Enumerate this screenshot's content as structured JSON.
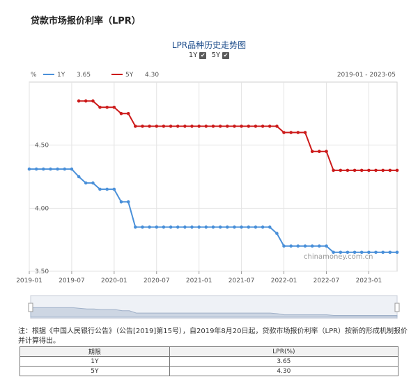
{
  "page": {
    "title": "贷款市场报价利率（LPR）",
    "note": "注：根据《中国人民银行公告》（公告[2019]第15号），自2019年8月20日起，贷款市场报价利率（LPR）按新的形成机制报价并计算得出。"
  },
  "chart": {
    "title": "LPR品种历史走势图",
    "toggles": [
      {
        "label": "1Y",
        "checked": true
      },
      {
        "label": "5Y",
        "checked": true
      }
    ],
    "unit": "%",
    "legend": [
      {
        "name": "1Y",
        "value": "3.65",
        "color": "#4a90d9"
      },
      {
        "name": "5Y",
        "value": "4.30",
        "color": "#cc1a1a"
      }
    ],
    "range_label": "2019-01 - 2023-05",
    "watermark": "chinamoney.com.cn"
  },
  "table": {
    "headers": [
      "期限",
      "LPR(%)"
    ],
    "rows": [
      [
        "1Y",
        "3.65"
      ],
      [
        "5Y",
        "4.30"
      ]
    ]
  },
  "chart_data": {
    "type": "line",
    "x_ticks": [
      "2019-01",
      "2019-07",
      "2020-01",
      "2020-07",
      "2021-01",
      "2021-07",
      "2022-01",
      "2022-07",
      "2023-01"
    ],
    "y_ticks": [
      "4.50",
      "4.00",
      "3.50"
    ],
    "ylim": [
      3.5,
      5.0
    ],
    "xlim": [
      "2019-01",
      "2023-05"
    ],
    "series": [
      {
        "name": "1Y",
        "color": "#4a90d9",
        "points": [
          [
            "2019-01",
            4.31
          ],
          [
            "2019-02",
            4.31
          ],
          [
            "2019-03",
            4.31
          ],
          [
            "2019-04",
            4.31
          ],
          [
            "2019-05",
            4.31
          ],
          [
            "2019-06",
            4.31
          ],
          [
            "2019-07",
            4.31
          ],
          [
            "2019-08",
            4.25
          ],
          [
            "2019-09",
            4.2
          ],
          [
            "2019-10",
            4.2
          ],
          [
            "2019-11",
            4.15
          ],
          [
            "2019-12",
            4.15
          ],
          [
            "2020-01",
            4.15
          ],
          [
            "2020-02",
            4.05
          ],
          [
            "2020-03",
            4.05
          ],
          [
            "2020-04",
            3.85
          ],
          [
            "2020-05",
            3.85
          ],
          [
            "2020-06",
            3.85
          ],
          [
            "2020-07",
            3.85
          ],
          [
            "2020-08",
            3.85
          ],
          [
            "2020-09",
            3.85
          ],
          [
            "2020-10",
            3.85
          ],
          [
            "2020-11",
            3.85
          ],
          [
            "2020-12",
            3.85
          ],
          [
            "2021-01",
            3.85
          ],
          [
            "2021-02",
            3.85
          ],
          [
            "2021-03",
            3.85
          ],
          [
            "2021-04",
            3.85
          ],
          [
            "2021-05",
            3.85
          ],
          [
            "2021-06",
            3.85
          ],
          [
            "2021-07",
            3.85
          ],
          [
            "2021-08",
            3.85
          ],
          [
            "2021-09",
            3.85
          ],
          [
            "2021-10",
            3.85
          ],
          [
            "2021-11",
            3.85
          ],
          [
            "2021-12",
            3.8
          ],
          [
            "2022-01",
            3.7
          ],
          [
            "2022-02",
            3.7
          ],
          [
            "2022-03",
            3.7
          ],
          [
            "2022-04",
            3.7
          ],
          [
            "2022-05",
            3.7
          ],
          [
            "2022-06",
            3.7
          ],
          [
            "2022-07",
            3.7
          ],
          [
            "2022-08",
            3.65
          ],
          [
            "2022-09",
            3.65
          ],
          [
            "2022-10",
            3.65
          ],
          [
            "2022-11",
            3.65
          ],
          [
            "2022-12",
            3.65
          ],
          [
            "2023-01",
            3.65
          ],
          [
            "2023-02",
            3.65
          ],
          [
            "2023-03",
            3.65
          ],
          [
            "2023-04",
            3.65
          ],
          [
            "2023-05",
            3.65
          ]
        ]
      },
      {
        "name": "5Y",
        "color": "#cc1a1a",
        "points": [
          [
            "2019-08",
            4.85
          ],
          [
            "2019-09",
            4.85
          ],
          [
            "2019-10",
            4.85
          ],
          [
            "2019-11",
            4.8
          ],
          [
            "2019-12",
            4.8
          ],
          [
            "2020-01",
            4.8
          ],
          [
            "2020-02",
            4.75
          ],
          [
            "2020-03",
            4.75
          ],
          [
            "2020-04",
            4.65
          ],
          [
            "2020-05",
            4.65
          ],
          [
            "2020-06",
            4.65
          ],
          [
            "2020-07",
            4.65
          ],
          [
            "2020-08",
            4.65
          ],
          [
            "2020-09",
            4.65
          ],
          [
            "2020-10",
            4.65
          ],
          [
            "2020-11",
            4.65
          ],
          [
            "2020-12",
            4.65
          ],
          [
            "2021-01",
            4.65
          ],
          [
            "2021-02",
            4.65
          ],
          [
            "2021-03",
            4.65
          ],
          [
            "2021-04",
            4.65
          ],
          [
            "2021-05",
            4.65
          ],
          [
            "2021-06",
            4.65
          ],
          [
            "2021-07",
            4.65
          ],
          [
            "2021-08",
            4.65
          ],
          [
            "2021-09",
            4.65
          ],
          [
            "2021-10",
            4.65
          ],
          [
            "2021-11",
            4.65
          ],
          [
            "2021-12",
            4.65
          ],
          [
            "2022-01",
            4.6
          ],
          [
            "2022-02",
            4.6
          ],
          [
            "2022-03",
            4.6
          ],
          [
            "2022-04",
            4.6
          ],
          [
            "2022-05",
            4.45
          ],
          [
            "2022-06",
            4.45
          ],
          [
            "2022-07",
            4.45
          ],
          [
            "2022-08",
            4.3
          ],
          [
            "2022-09",
            4.3
          ],
          [
            "2022-10",
            4.3
          ],
          [
            "2022-11",
            4.3
          ],
          [
            "2022-12",
            4.3
          ],
          [
            "2023-01",
            4.3
          ],
          [
            "2023-02",
            4.3
          ],
          [
            "2023-03",
            4.3
          ],
          [
            "2023-04",
            4.3
          ],
          [
            "2023-05",
            4.3
          ]
        ]
      }
    ],
    "grid": true,
    "legend": "top-left"
  }
}
